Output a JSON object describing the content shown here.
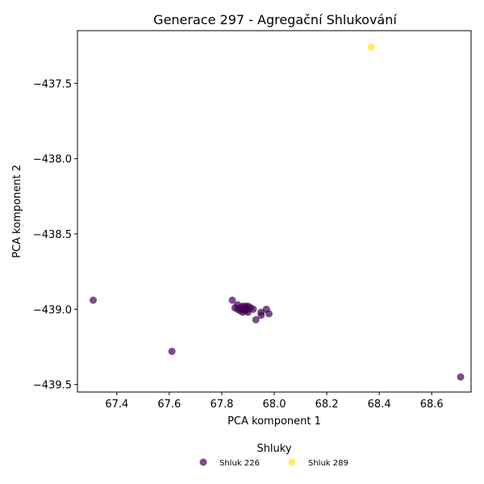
{
  "chart_data": {
    "type": "scatter",
    "title": "Generace 297 - Agregační Shlukování",
    "xlabel": "PCA komponent 1",
    "ylabel": "PCA komponent 2",
    "xlim": [
      67.25,
      68.75
    ],
    "ylim": [
      -439.55,
      -437.15
    ],
    "xticks": [
      67.4,
      67.6,
      67.8,
      68.0,
      68.2,
      68.4,
      68.6
    ],
    "xtick_labels": [
      "67.4",
      "67.6",
      "67.8",
      "68.0",
      "68.2",
      "68.4",
      "68.6"
    ],
    "yticks": [
      -437.5,
      -438.0,
      -438.5,
      -439.0,
      -439.5
    ],
    "ytick_labels": [
      "−437.5",
      "−438.0",
      "−438.5",
      "−439.0",
      "−439.5"
    ],
    "grid": false,
    "legend": {
      "title": "Shluky",
      "placement": "bottom-center"
    },
    "series": [
      {
        "name": "Shluk 226",
        "color": "#440154",
        "points": [
          [
            67.31,
            -438.94
          ],
          [
            67.61,
            -439.28
          ],
          [
            68.71,
            -439.45
          ],
          [
            67.84,
            -438.94
          ],
          [
            67.85,
            -438.99
          ],
          [
            67.86,
            -438.97
          ],
          [
            67.86,
            -439.0
          ],
          [
            67.87,
            -438.99
          ],
          [
            67.87,
            -439.01
          ],
          [
            67.88,
            -438.98
          ],
          [
            67.88,
            -439.0
          ],
          [
            67.88,
            -439.02
          ],
          [
            67.89,
            -438.98
          ],
          [
            67.89,
            -438.99
          ],
          [
            67.89,
            -439.0
          ],
          [
            67.89,
            -439.01
          ],
          [
            67.9,
            -438.98
          ],
          [
            67.9,
            -439.0
          ],
          [
            67.9,
            -439.02
          ],
          [
            67.91,
            -438.99
          ],
          [
            67.92,
            -439.0
          ],
          [
            67.93,
            -439.07
          ],
          [
            67.95,
            -439.02
          ],
          [
            67.95,
            -439.04
          ],
          [
            67.97,
            -439.0
          ],
          [
            67.98,
            -439.03
          ]
        ]
      },
      {
        "name": "Shluk 289",
        "color": "#fde725",
        "points": [
          [
            68.37,
            -437.26
          ]
        ]
      }
    ]
  }
}
